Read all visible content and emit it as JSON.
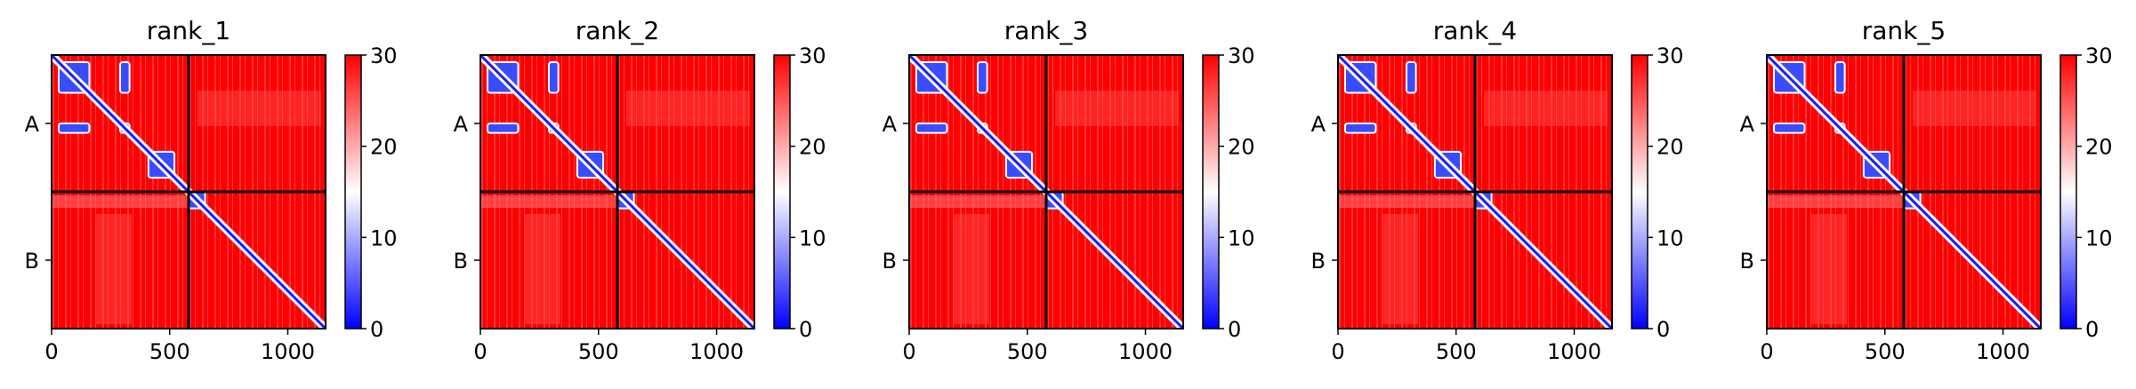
{
  "chart_data": {
    "type": "heatmap",
    "chains": [
      "A",
      "B"
    ],
    "chain_boundary": 580,
    "xlim": [
      0,
      1160
    ],
    "xticks": [
      0,
      500,
      1000
    ],
    "colorbar": {
      "min": 0,
      "max": 30,
      "ticks": [
        0,
        10,
        20,
        30
      ],
      "colormap": "bwr",
      "low_color": "#0000ff",
      "mid_color": "#ffffff",
      "high_color": "#ff0000"
    },
    "panels": [
      {
        "title": "rank_1"
      },
      {
        "title": "rank_2"
      },
      {
        "title": "rank_3"
      },
      {
        "title": "rank_4"
      },
      {
        "title": "rank_5"
      }
    ],
    "low_value_blocks": [
      {
        "rows": [
          30,
          160
        ],
        "cols": [
          30,
          160
        ]
      },
      {
        "rows": [
          290,
          330
        ],
        "cols": [
          290,
          330
        ]
      },
      {
        "rows": [
          410,
          520
        ],
        "cols": [
          410,
          520
        ]
      },
      {
        "rows": [
          580,
          650
        ],
        "cols": [
          580,
          650
        ]
      },
      {
        "rows": [
          30,
          160
        ],
        "cols": [
          290,
          330
        ]
      },
      {
        "rows": [
          290,
          330
        ],
        "cols": [
          30,
          160
        ]
      }
    ]
  }
}
